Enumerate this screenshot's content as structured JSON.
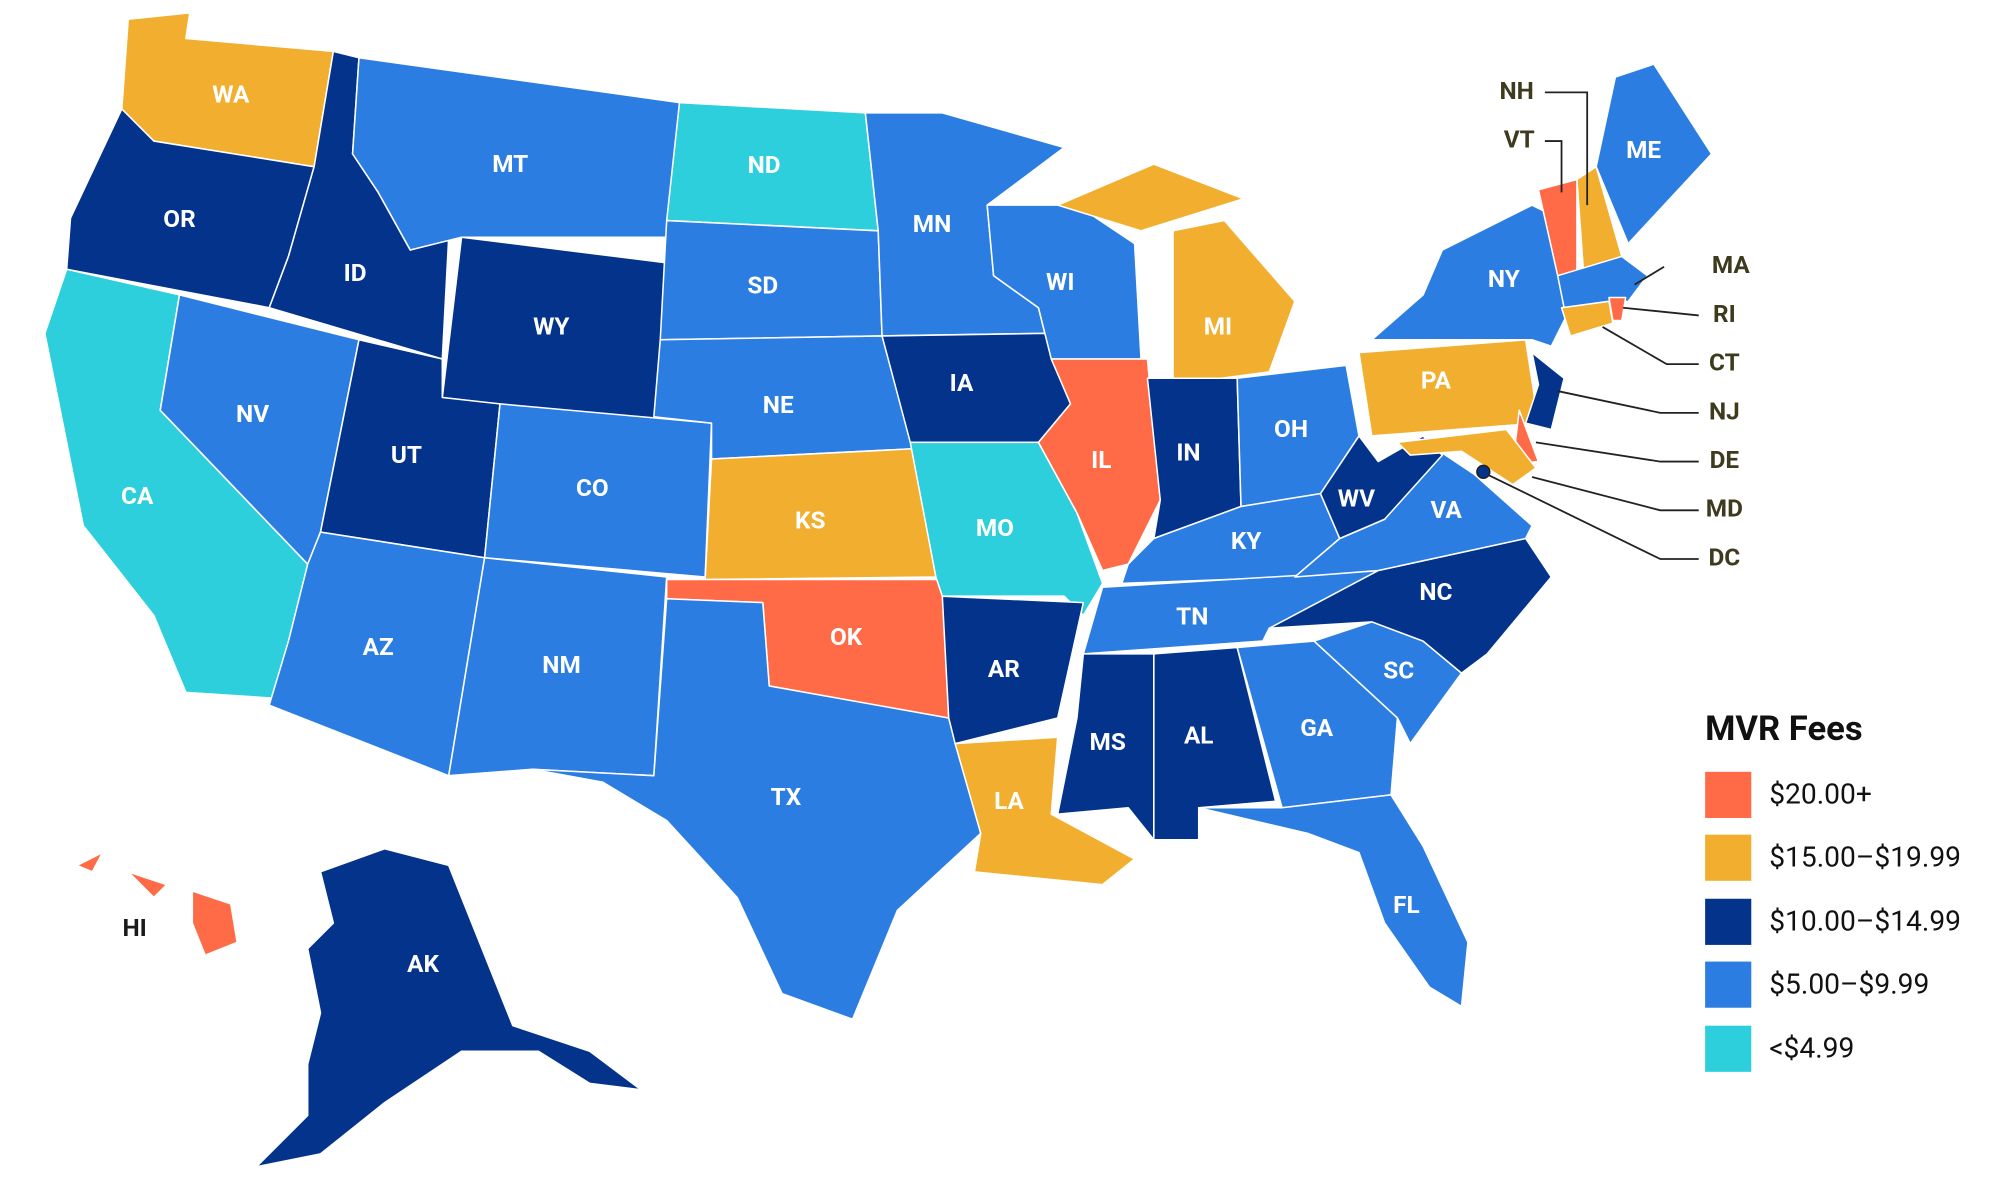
{
  "map": {
    "legend": {
      "title": "MVR Fees",
      "items": [
        {
          "label": "$20.00+",
          "color": "#ff6b47",
          "states": [
            "VT",
            "RI",
            "DE",
            "IL",
            "OK",
            "HI"
          ]
        },
        {
          "label": "$15.00–$19.99",
          "color": "#f2ae2e",
          "states": [
            "WA",
            "MI",
            "PA",
            "KS",
            "LA",
            "NH",
            "CT",
            "MD"
          ]
        },
        {
          "label": "$10.00–$14.99",
          "color": "#04338c",
          "states": [
            "OR",
            "ID",
            "WY",
            "UT",
            "IA",
            "IN",
            "WV",
            "NC",
            "AR",
            "MS",
            "AL",
            "AK",
            "NJ",
            "DC"
          ]
        },
        {
          "label": "$5.00–$9.99",
          "color": "#2b7de1",
          "states": [
            "MT",
            "SD",
            "NE",
            "CO",
            "NV",
            "AZ",
            "NM",
            "TX",
            "MN",
            "WI",
            "OH",
            "KY",
            "TN",
            "VA",
            "SC",
            "GA",
            "FL",
            "NY",
            "ME",
            "MA"
          ]
        },
        {
          "label": "<$4.99",
          "color": "#2ecfdc",
          "states": [
            "ND",
            "CA",
            "MO"
          ]
        }
      ]
    }
  }
}
